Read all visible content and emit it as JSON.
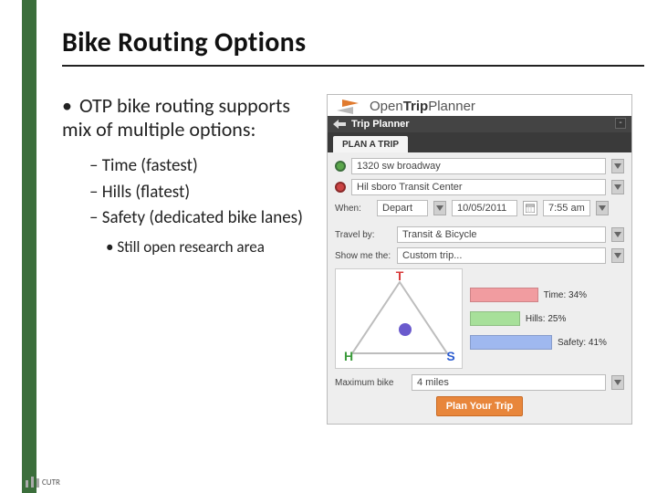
{
  "title": "Bike Routing Options",
  "bullets": {
    "main": "OTP bike routing supports mix of multiple options:",
    "dash": [
      "Time (fastest)",
      "Hills (flatest)",
      "Safety (dedicated bike lanes)"
    ],
    "sub": "Still open research area"
  },
  "brand": {
    "prefix": "Open",
    "mid": "Trip",
    "suffix": "Planner"
  },
  "panel": {
    "bar_title": "Trip Planner",
    "tab": "PLAN A TRIP",
    "from": "1320 sw broadway",
    "to": "Hil sboro Transit Center",
    "when_label": "When:",
    "depart": "Depart",
    "date": "10/05/2011",
    "time": "7:55 am",
    "travel_label": "Travel by:",
    "travel_value": "Transit & Bicycle",
    "show_label": "Show me the:",
    "show_value": "Custom trip...",
    "maxbike_label": "Maximum bike",
    "maxbike_value": "4 miles",
    "plan_button": "Plan Your Trip"
  },
  "triangle": {
    "labels": {
      "T": "T",
      "H": "H",
      "S": "S"
    },
    "colors": {
      "T": "#d83a3a",
      "H": "#3a9a3a",
      "S": "#2a5bd0"
    },
    "cursor_color": "#6a5acd",
    "border_color": "#bdbdbd"
  },
  "metrics": {
    "time": {
      "label": "Time: 34%",
      "pct": 34,
      "color": "#f19ca0"
    },
    "hills": {
      "label": "Hills: 25%",
      "pct": 25,
      "color": "#a7e09a"
    },
    "safety": {
      "label": "Safety: 41%",
      "pct": 41,
      "color": "#9fb8ef"
    }
  },
  "footer": "CUTR"
}
